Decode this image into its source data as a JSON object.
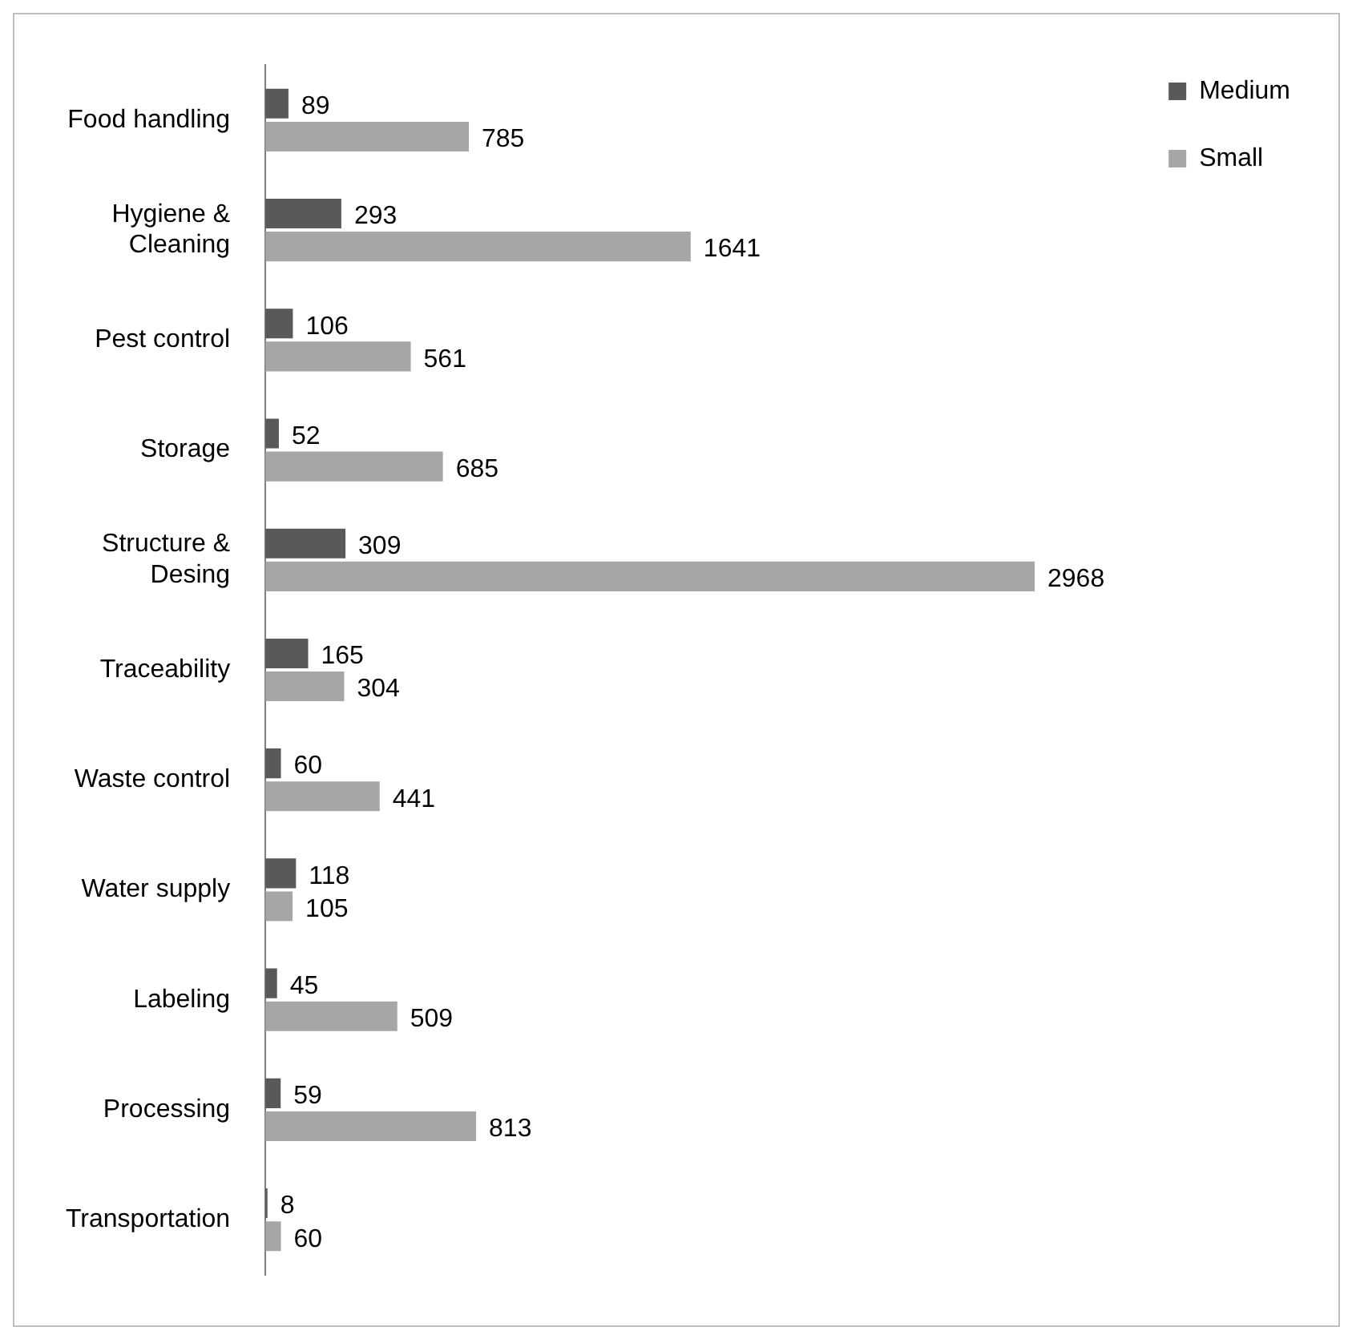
{
  "chart_data": {
    "type": "bar",
    "orientation": "horizontal",
    "categories": [
      "Food handling",
      "Hygiene &\nCleaning",
      "Pest control",
      "Storage",
      "Structure &\nDesing",
      "Traceability",
      "Waste control",
      "Water supply",
      "Labeling",
      "Processing",
      "Transportation"
    ],
    "series": [
      {
        "name": "Medium",
        "color": "#595959",
        "values": [
          89,
          293,
          106,
          52,
          309,
          165,
          60,
          118,
          45,
          59,
          8
        ]
      },
      {
        "name": "Small",
        "color": "#a6a6a6",
        "values": [
          785,
          1641,
          561,
          685,
          2968,
          304,
          441,
          105,
          509,
          813,
          60
        ]
      }
    ],
    "data_labels": true,
    "legend": "right"
  }
}
